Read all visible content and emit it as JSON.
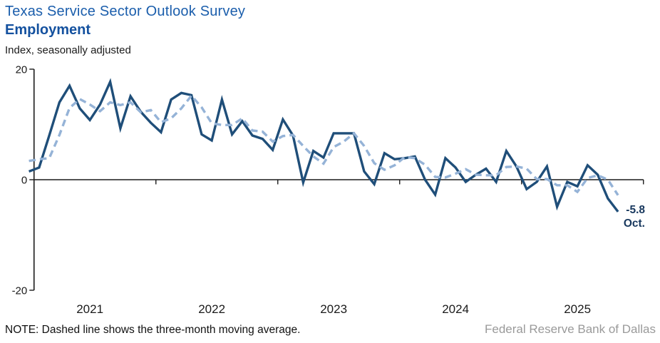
{
  "header": {
    "title": "Texas Service Sector Outlook Survey",
    "subtitle": "Employment",
    "unit_label": "Index, seasonally adjusted"
  },
  "annotation": {
    "value": "-5.8",
    "month": "Oct."
  },
  "footer": {
    "note": "NOTE: Dashed line shows the three-month moving average.",
    "source": "Federal Reserve Bank of Dallas"
  },
  "colors": {
    "line": "#1F4E79",
    "moving_avg": "#95B3D7",
    "axis": "#1A1A1A",
    "tick_text": "#1a1a1a",
    "title": "#1B5EAC",
    "subtitle": "#14519F",
    "annotation": "#17375D",
    "source_text": "#9A9A9A"
  },
  "chart_data": {
    "type": "line",
    "title": "Texas Service Sector Outlook Survey — Employment",
    "ylabel": "Index, seasonally adjusted",
    "ylim": [
      -20,
      20
    ],
    "y_ticks": [
      20,
      0,
      -20
    ],
    "x_tick_labels": [
      "2021",
      "2022",
      "2023",
      "2024",
      "2025"
    ],
    "start_month": "2020-12",
    "end_month": "2025-10",
    "months_per_label": 12,
    "grid": false,
    "legend_position": "none",
    "note": "Dashed line shows the three-month moving average.",
    "latest": {
      "month": "Oct.",
      "value": -5.8
    },
    "series": [
      {
        "name": "Employment index",
        "style": "solid",
        "values": [
          1.5,
          2.2,
          8.0,
          14.0,
          17.0,
          12.9,
          10.8,
          13.6,
          17.7,
          9.3,
          15.1,
          12.3,
          10.3,
          8.6,
          14.5,
          15.7,
          15.3,
          8.2,
          7.1,
          14.5,
          8.2,
          10.6,
          8.0,
          7.4,
          5.4,
          10.9,
          8.0,
          -0.5,
          5.2,
          4.0,
          8.4,
          8.4,
          8.4,
          1.5,
          -0.8,
          4.8,
          3.7,
          3.9,
          4.2,
          0.0,
          -2.7,
          3.9,
          2.2,
          -0.4,
          0.9,
          2.0,
          -0.4,
          5.2,
          2.4,
          -1.7,
          -0.4,
          2.4,
          -4.9,
          -0.4,
          -1.2,
          2.6,
          0.9,
          -3.4,
          -5.8
        ]
      },
      {
        "name": "Three-month moving average",
        "style": "dashed",
        "values": [
          3.4,
          3.7,
          3.9,
          8.1,
          13.0,
          14.6,
          13.6,
          12.4,
          14.0,
          13.5,
          14.0,
          12.2,
          12.6,
          10.4,
          11.1,
          12.9,
          15.2,
          13.1,
          10.2,
          9.9,
          9.9,
          11.1,
          8.9,
          8.7,
          6.9,
          7.9,
          8.1,
          6.1,
          4.2,
          2.9,
          5.9,
          6.9,
          8.4,
          6.1,
          3.0,
          1.8,
          2.6,
          4.1,
          3.9,
          2.7,
          0.5,
          0.4,
          1.1,
          1.9,
          0.9,
          0.8,
          0.8,
          2.3,
          2.4,
          2.0,
          0.1,
          0.1,
          -1.0,
          -1.0,
          -2.2,
          0.3,
          0.8,
          0.0,
          -2.8
        ]
      }
    ]
  }
}
